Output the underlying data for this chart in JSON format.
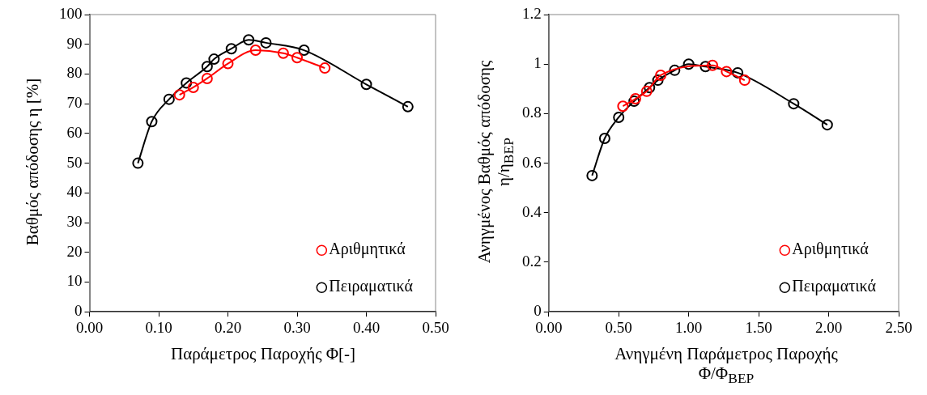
{
  "chart_data": [
    {
      "type": "line",
      "xlabel": "Παράμετρος Παροχής Φ[-]",
      "ylabel": "Βαθμός απόδοσης η [%]",
      "xlim": [
        0,
        0.5
      ],
      "xticks": [
        {
          "value": 0,
          "label": "0.00"
        },
        {
          "value": 0.1,
          "label": "0.10"
        },
        {
          "value": 0.2,
          "label": "0.20"
        },
        {
          "value": 0.3,
          "label": "0.30"
        },
        {
          "value": 0.4,
          "label": "0.40"
        },
        {
          "value": 0.5,
          "label": "0.50"
        }
      ],
      "ylim": [
        0,
        100
      ],
      "yticks": [
        0,
        10,
        20,
        30,
        40,
        50,
        60,
        70,
        80,
        90,
        100
      ],
      "grid": false,
      "legend": "bottom right",
      "marker": "circle",
      "line_style": "solid",
      "series": [
        {
          "name": "Αριθμητικά",
          "color": "#ff0000",
          "x": [
            0.13,
            0.15,
            0.17,
            0.2,
            0.24,
            0.28,
            0.3,
            0.34
          ],
          "values": [
            73,
            75.5,
            78.5,
            83.5,
            88,
            87,
            85.5,
            82
          ]
        },
        {
          "name": "Πειραματικά",
          "color": "#000000",
          "x": [
            0.07,
            0.09,
            0.115,
            0.14,
            0.17,
            0.18,
            0.205,
            0.23,
            0.255,
            0.31,
            0.4,
            0.46
          ],
          "values": [
            50,
            64,
            71.5,
            77,
            82.5,
            85,
            88.5,
            91.5,
            90.5,
            88,
            76.5,
            69
          ]
        }
      ]
    },
    {
      "type": "line",
      "xlabel": "Ανηγμένη Παράμετρος Παροχής\nΦ/Φ$_{BEP}$",
      "ylabel": "Ανηγμένος Βαθμός απόδοσης\nη/η$_{BEP}$",
      "xlim": [
        0,
        2.5
      ],
      "xticks": [
        {
          "value": 0,
          "label": "0.00"
        },
        {
          "value": 0.5,
          "label": "0.50"
        },
        {
          "value": 1,
          "label": "1.00"
        },
        {
          "value": 1.5,
          "label": "1.50"
        },
        {
          "value": 2,
          "label": "2.00"
        },
        {
          "value": 2.5,
          "label": "2.50"
        }
      ],
      "ylim": [
        0,
        1.2
      ],
      "yticks": [
        0,
        0.2,
        0.4,
        0.6,
        0.8,
        1,
        1.2
      ],
      "grid": false,
      "legend": "bottom right",
      "marker": "circle",
      "line_style": "solid",
      "series": [
        {
          "name": "Αριθμητικά",
          "color": "#ff0000",
          "x": [
            0.53,
            0.62,
            0.7,
            0.8,
            1.17,
            1.27,
            1.4
          ],
          "values": [
            0.83,
            0.86,
            0.89,
            0.955,
            0.995,
            0.97,
            0.935
          ]
        },
        {
          "name": "Πειραματικά",
          "color": "#000000",
          "x": [
            0.31,
            0.4,
            0.5,
            0.61,
            0.72,
            0.78,
            0.9,
            1.0,
            1.12,
            1.35,
            1.75,
            1.99
          ],
          "values": [
            0.55,
            0.7,
            0.785,
            0.85,
            0.905,
            0.935,
            0.975,
            1.0,
            0.99,
            0.965,
            0.84,
            0.755
          ]
        }
      ]
    }
  ]
}
